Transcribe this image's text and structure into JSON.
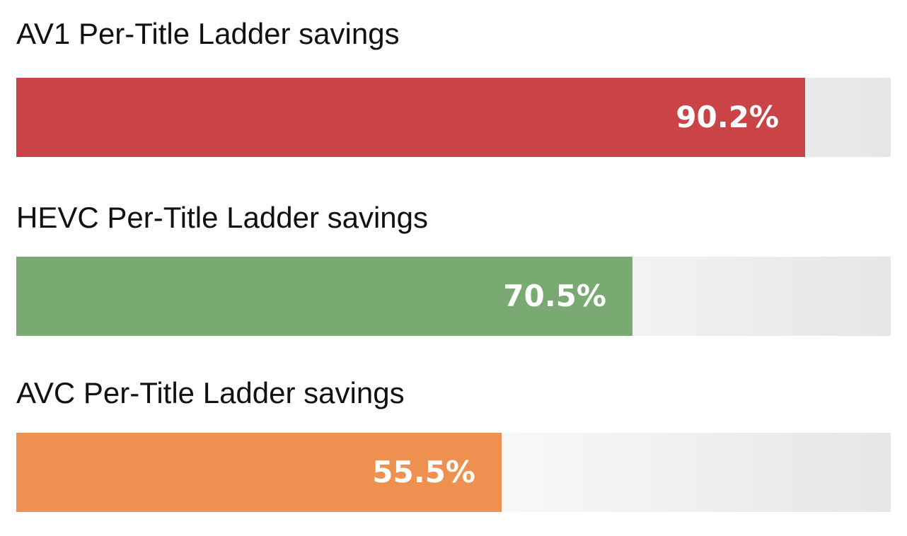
{
  "chart_data": {
    "type": "bar",
    "orientation": "horizontal",
    "categories": [
      "AV1 Per-Title Ladder savings",
      "HEVC Per-Title Ladder savings",
      "AVC Per-Title Ladder savings"
    ],
    "values": [
      90.2,
      70.5,
      55.5
    ],
    "value_labels": [
      "90.2%",
      "70.5%",
      "55.5%"
    ],
    "colors": [
      "#c94347",
      "#79aa72",
      "#ee9150"
    ],
    "xlim": [
      0,
      100
    ],
    "grid": false,
    "legend": "none"
  }
}
